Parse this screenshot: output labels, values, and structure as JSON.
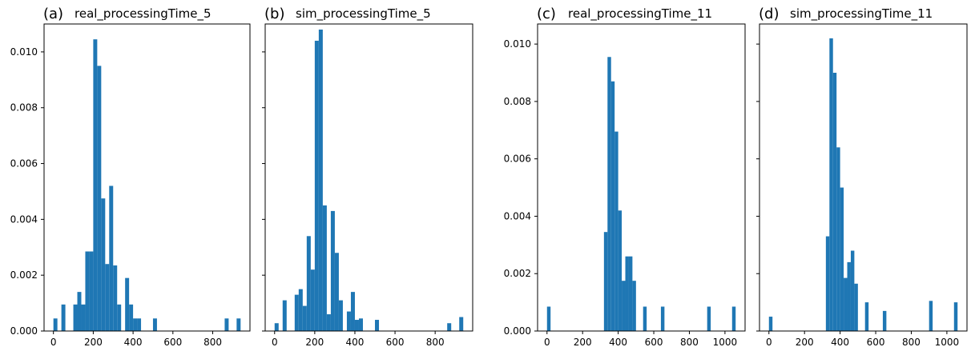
{
  "chart_data": [
    {
      "type": "histogram",
      "label": "(a)",
      "title": "real_processingTime_5",
      "color": "#1f77b4",
      "bins": [
        0,
        20,
        40,
        60,
        80,
        100,
        120,
        140,
        160,
        180,
        200,
        220,
        240,
        260,
        280,
        300,
        320,
        340,
        360,
        380,
        400,
        420,
        440,
        460,
        480,
        500,
        520,
        540,
        560,
        580,
        600,
        620,
        640,
        660,
        680,
        700,
        720,
        740,
        760,
        780,
        800,
        820,
        840,
        860,
        880,
        900,
        920,
        940
      ],
      "values": [
        0.00045,
        0,
        0.00095,
        0,
        0,
        0.00095,
        0.0014,
        0.00095,
        0.00285,
        0.00285,
        0.01045,
        0.0095,
        0.00475,
        0.0024,
        0.0052,
        0.00235,
        0.00095,
        0,
        0.0019,
        0.00095,
        0.00045,
        0.00045,
        0,
        0,
        0,
        0.00045,
        0,
        0,
        0,
        0,
        0,
        0,
        0,
        0,
        0,
        0,
        0,
        0,
        0,
        0,
        0,
        0,
        0,
        0.00045,
        0,
        0,
        0.00045
      ],
      "xlim": [
        -47,
        987
      ],
      "xticks": [
        0,
        200,
        400,
        600,
        800
      ],
      "ylim": [
        0,
        0.011
      ],
      "yticks": [
        {
          "value": 0,
          "label": "0.000"
        },
        {
          "value": 0.002,
          "label": "0.002"
        },
        {
          "value": 0.004,
          "label": "0.004"
        },
        {
          "value": 0.006,
          "label": "0.006"
        },
        {
          "value": 0.008,
          "label": "0.008"
        },
        {
          "value": 0.01,
          "label": "0.010"
        }
      ]
    },
    {
      "type": "histogram",
      "label": "(b)",
      "title": "sim_processingTime_5",
      "color": "#1f77b4",
      "bins": [
        0,
        20,
        40,
        60,
        80,
        100,
        120,
        140,
        160,
        180,
        200,
        220,
        240,
        260,
        280,
        300,
        320,
        340,
        360,
        380,
        400,
        420,
        440,
        460,
        480,
        500,
        520,
        540,
        560,
        580,
        600,
        620,
        640,
        660,
        680,
        700,
        720,
        740,
        760,
        780,
        800,
        820,
        840,
        860,
        880,
        900,
        920,
        940
      ],
      "values": [
        0.00028,
        0,
        0.0011,
        0,
        0,
        0.0013,
        0.0015,
        0.0009,
        0.0034,
        0.0022,
        0.0104,
        0.0108,
        0.0045,
        0.0006,
        0.0043,
        0.0028,
        0.0011,
        0,
        0.0007,
        0.0014,
        0.0004,
        0.00045,
        0,
        0,
        0,
        0.0004,
        0,
        0,
        0,
        0,
        0,
        0,
        0,
        0,
        0,
        0,
        0,
        0,
        0,
        0,
        0,
        0,
        0,
        0.00028,
        0,
        0,
        0.0005
      ],
      "xlim": [
        -47,
        987
      ],
      "xticks": [
        0,
        200,
        400,
        600,
        800
      ],
      "ylim": [
        0,
        0.011
      ],
      "yticks": [
        0,
        0.002,
        0.004,
        0.006,
        0.008,
        0.01
      ]
    },
    {
      "type": "histogram",
      "label": "(c)",
      "title": "real_processingTime_11",
      "color": "#1f77b4",
      "bins": [
        0,
        20,
        40,
        60,
        80,
        100,
        120,
        140,
        160,
        180,
        200,
        220,
        240,
        260,
        280,
        300,
        320,
        340,
        360,
        380,
        400,
        420,
        440,
        460,
        480,
        500,
        520,
        540,
        560,
        580,
        600,
        620,
        640,
        660,
        680,
        700,
        720,
        740,
        760,
        780,
        800,
        820,
        840,
        860,
        880,
        900,
        920,
        940,
        960,
        980,
        1000,
        1020,
        1040,
        1060
      ],
      "values": [
        0.00085,
        0,
        0,
        0,
        0,
        0,
        0,
        0,
        0,
        0,
        0,
        0,
        0,
        0,
        0,
        0,
        0.00345,
        0.00955,
        0.0087,
        0.00695,
        0.0042,
        0.00175,
        0.0026,
        0.0026,
        0.00175,
        0,
        0,
        0.00085,
        0,
        0,
        0,
        0,
        0.00085,
        0,
        0,
        0,
        0,
        0,
        0,
        0,
        0,
        0,
        0,
        0,
        0,
        0.00085,
        0,
        0,
        0,
        0,
        0,
        0,
        0.00085
      ],
      "xlim": [
        -53,
        1113
      ],
      "xticks": [
        0,
        200,
        400,
        600,
        800,
        1000
      ],
      "ylim": [
        0,
        0.0107
      ],
      "yticks": [
        {
          "value": 0,
          "label": "0.000"
        },
        {
          "value": 0.002,
          "label": "0.002"
        },
        {
          "value": 0.004,
          "label": "0.004"
        },
        {
          "value": 0.006,
          "label": "0.006"
        },
        {
          "value": 0.008,
          "label": "0.008"
        },
        {
          "value": 0.01,
          "label": "0.010"
        }
      ]
    },
    {
      "type": "histogram",
      "label": "(d)",
      "title": "sim_processingTime_11",
      "color": "#1f77b4",
      "bins": [
        0,
        20,
        40,
        60,
        80,
        100,
        120,
        140,
        160,
        180,
        200,
        220,
        240,
        260,
        280,
        300,
        320,
        340,
        360,
        380,
        400,
        420,
        440,
        460,
        480,
        500,
        520,
        540,
        560,
        580,
        600,
        620,
        640,
        660,
        680,
        700,
        720,
        740,
        760,
        780,
        800,
        820,
        840,
        860,
        880,
        900,
        920,
        940,
        960,
        980,
        1000,
        1020,
        1040,
        1060
      ],
      "values": [
        0.0005,
        0,
        0,
        0,
        0,
        0,
        0,
        0,
        0,
        0,
        0,
        0,
        0,
        0,
        0,
        0,
        0.0033,
        0.0102,
        0.009,
        0.0064,
        0.005,
        0.00185,
        0.0024,
        0.0028,
        0.00165,
        0,
        0,
        0.001,
        0,
        0,
        0,
        0,
        0.0007,
        0,
        0,
        0,
        0,
        0,
        0,
        0,
        0,
        0,
        0,
        0,
        0,
        0.00105,
        0,
        0,
        0,
        0,
        0,
        0,
        0.001
      ],
      "xlim": [
        -53,
        1113
      ],
      "xticks": [
        0,
        200,
        400,
        600,
        800,
        1000
      ],
      "ylim": [
        0,
        0.0107
      ],
      "yticks": [
        0,
        0.002,
        0.004,
        0.006,
        0.008,
        0.01
      ]
    }
  ]
}
